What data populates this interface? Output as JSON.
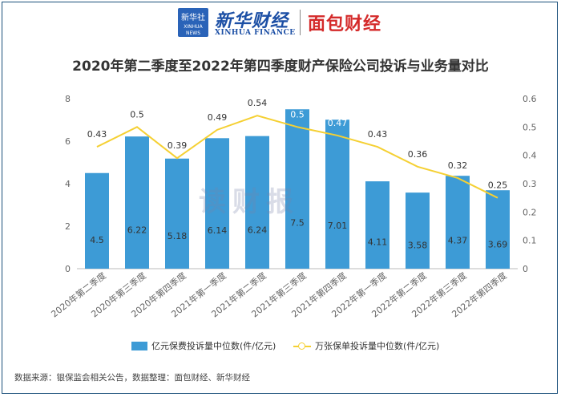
{
  "header": {
    "logo_box_line1": "新华社",
    "logo_box_line2": "XINHUA NEWS",
    "brand_cn": "新华财经",
    "brand_en": "XINHUA FINANCE",
    "brand2": "面包财经"
  },
  "watermark": "读财报",
  "source": "数据来源：银保监会相关公告，数据整理：面包财经、新华财经",
  "colors": {
    "bar": "#3d9bd6",
    "line": "#f5d033",
    "axis_text": "#666666"
  },
  "chart_data": {
    "type": "bar",
    "title": "2020年第二季度至2022年第四季度财产保险公司投诉与业务量对比",
    "categories": [
      "2020年第二季度",
      "2020年第三季度",
      "2020年第四季度",
      "2021年第一季度",
      "2021年第二季度",
      "2021年第三季度",
      "2021年第四季度",
      "2022年第一季度",
      "2022年第二季度",
      "2022年第三季度",
      "2022年第四季度"
    ],
    "series": [
      {
        "name": "亿元保费投诉量中位数(件/亿元)",
        "type": "bar",
        "axis": "left",
        "values": [
          4.5,
          6.22,
          5.18,
          6.14,
          6.24,
          7.5,
          7.01,
          4.11,
          3.58,
          4.37,
          3.69
        ]
      },
      {
        "name": "万张保单投诉量中位数(件/亿元)",
        "type": "line",
        "axis": "right",
        "values": [
          0.43,
          0.5,
          0.39,
          0.49,
          0.54,
          0.5,
          0.47,
          0.43,
          0.36,
          0.32,
          0.25
        ]
      }
    ],
    "y_left": {
      "min": 0,
      "max": 8,
      "ticks": [
        "0",
        "2",
        "4",
        "6",
        "8"
      ]
    },
    "y_right": {
      "min": 0,
      "max": 0.6,
      "ticks": [
        "0",
        "0.1",
        "0.2",
        "0.3",
        "0.4",
        "0.5",
        "0.6"
      ]
    },
    "grid": false,
    "legend_position": "bottom"
  }
}
